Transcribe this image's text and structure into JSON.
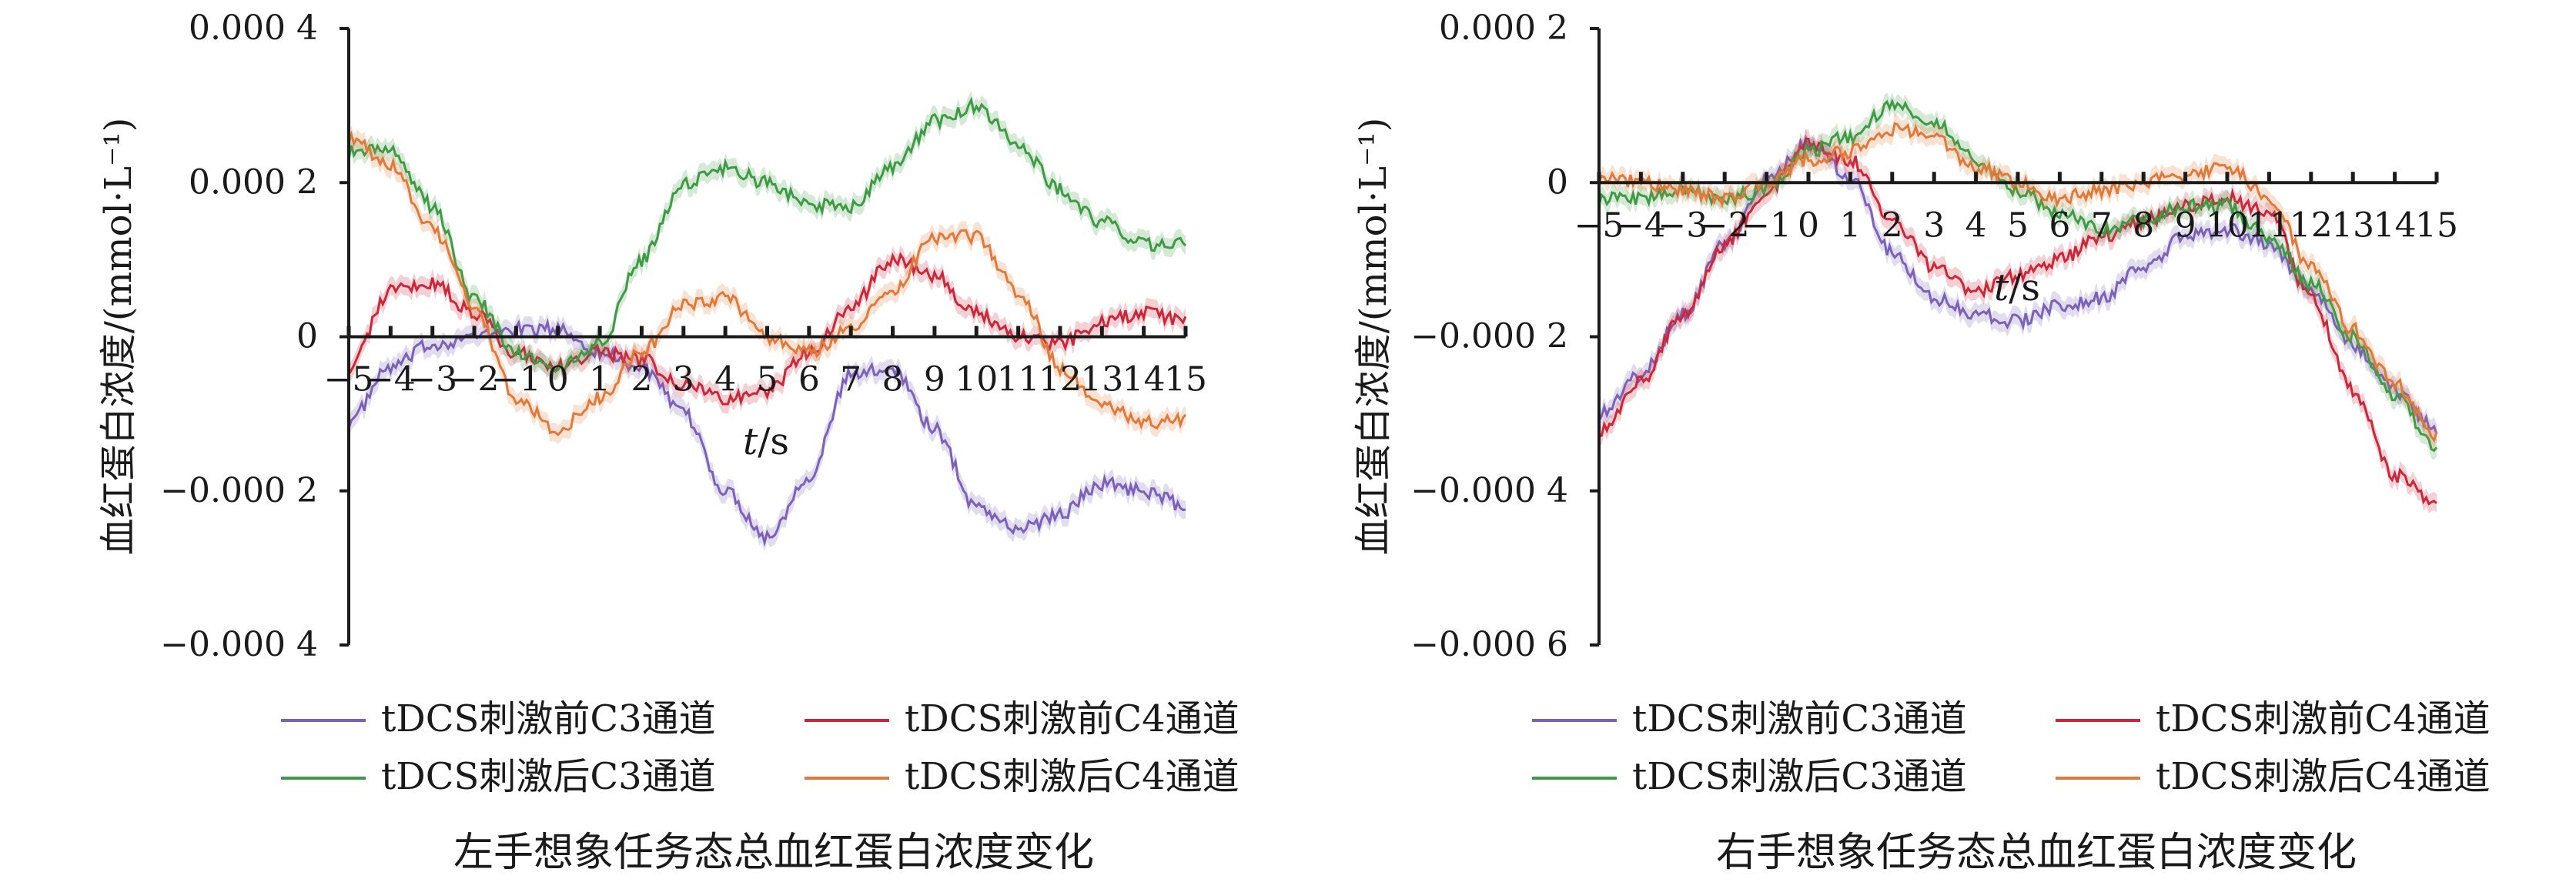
{
  "figure": {
    "captions": [
      "左手想象任务态总血红蛋白浓度变化",
      "右手想象任务态总血红蛋白浓度变化"
    ]
  },
  "chart_data": [
    {
      "type": "line",
      "title": "左手想象任务态总血红蛋白浓度变化",
      "xlabel": "t/s",
      "ylabel": "血红蛋白浓度/(mmol·L⁻¹)",
      "ylim": [
        -0.0004,
        0.0004
      ],
      "yticks": [
        0.0004,
        0.0002,
        0,
        -0.0002,
        -0.0004
      ],
      "ytick_labels": [
        "0.000 4",
        "0.000 2",
        "0",
        "−0.000 2",
        "−0.000 4"
      ],
      "xlim": [
        -5,
        15
      ],
      "xtick_labels": [
        "−5",
        "−4",
        "−3",
        "−2",
        "−1",
        "0",
        "1",
        "2",
        "3",
        "4",
        "5",
        "6",
        "7",
        "8",
        "9",
        "10",
        "11",
        "12",
        "13",
        "14",
        "15"
      ],
      "legend": "bottom",
      "x": [
        -5,
        -4,
        -3,
        -2,
        -1,
        0,
        1,
        2,
        3,
        4,
        5,
        6,
        7,
        8,
        9,
        10,
        11,
        12,
        13,
        14,
        15
      ],
      "series": [
        {
          "name": "tDCS刺激前C3通道",
          "color": "#7b61b8",
          "values": [
            -0.00011,
            -4e-05,
            -1e-05,
            0.0,
            1e-05,
            1e-05,
            -2e-05,
            -4e-05,
            -0.0001,
            -0.0002,
            -0.00026,
            -0.00018,
            -5e-05,
            -4e-05,
            -0.00012,
            -0.00022,
            -0.00025,
            -0.00023,
            -0.00019,
            -0.0002,
            -0.00022
          ]
        },
        {
          "name": "tDCS刺激前C4通道",
          "color": "#c8283a",
          "values": [
            -4e-05,
            6e-05,
            7e-05,
            3e-05,
            -2e-05,
            -4e-05,
            -2e-05,
            -3e-05,
            -6e-05,
            -8e-05,
            -7e-05,
            -2e-05,
            4e-05,
            0.0001,
            8e-05,
            3e-05,
            0.0,
            -1e-05,
            2e-05,
            3e-05,
            2e-05
          ]
        },
        {
          "name": "tDCS刺激后C3通道",
          "color": "#3f9a45",
          "values": [
            0.00024,
            0.00024,
            0.00017,
            5e-05,
            -2e-05,
            -4e-05,
            -1e-05,
            0.0001,
            0.0002,
            0.00022,
            0.0002,
            0.00017,
            0.00017,
            0.00022,
            0.00028,
            0.0003,
            0.00025,
            0.00019,
            0.00015,
            0.00012,
            0.00012
          ]
        },
        {
          "name": "tDCS刺激后C4通道",
          "color": "#e07a3a",
          "values": [
            0.00026,
            0.00022,
            0.00014,
            4e-05,
            -8e-05,
            -0.00012,
            -8e-05,
            -2e-05,
            4e-05,
            5e-05,
            0.0,
            -2e-05,
            1e-05,
            6e-05,
            0.00013,
            0.00013,
            6e-05,
            -4e-05,
            -9e-05,
            -0.00011,
            -0.00011
          ]
        }
      ]
    },
    {
      "type": "line",
      "title": "右手想象任务态总血红蛋白浓度变化",
      "xlabel": "t/s",
      "ylabel": "血红蛋白浓度/(mmol·L⁻¹)",
      "ylim": [
        -0.0006,
        0.0002
      ],
      "yticks": [
        0.0002,
        0,
        -0.0002,
        -0.0004,
        -0.0006
      ],
      "ytick_labels": [
        "0.000 2",
        "0",
        "−0.000 2",
        "−0.000 4",
        "−0.000 6"
      ],
      "xlim": [
        -5,
        15
      ],
      "xtick_labels": [
        "−5",
        "−4",
        "−3",
        "−2",
        "−1",
        "0",
        "1",
        "2",
        "3",
        "4",
        "5",
        "6",
        "7",
        "8",
        "9",
        "10",
        "11",
        "12",
        "13",
        "14",
        "15"
      ],
      "legend": "bottom",
      "x": [
        -5,
        -4,
        -3,
        -2,
        -1,
        0,
        1,
        2,
        3,
        4,
        5,
        6,
        7,
        8,
        9,
        10,
        11,
        12,
        13,
        14,
        15
      ],
      "series": [
        {
          "name": "tDCS刺激前C3通道",
          "color": "#7b61b8",
          "values": [
            -0.0003,
            -0.00025,
            -0.00017,
            -8e-05,
            0.0,
            5e-05,
            1e-05,
            -9e-05,
            -0.00015,
            -0.00017,
            -0.00018,
            -0.00016,
            -0.00015,
            -0.00011,
            -7e-05,
            -6e-05,
            -8e-05,
            -0.00014,
            -0.00021,
            -0.00027,
            -0.00032
          ]
        },
        {
          "name": "tDCS刺激前C4通道",
          "color": "#c8283a",
          "values": [
            -0.00032,
            -0.00026,
            -0.00017,
            -8e-05,
            -1e-05,
            5e-05,
            3e-05,
            -5e-05,
            -0.00011,
            -0.00014,
            -0.00012,
            -0.0001,
            -7e-05,
            -5e-05,
            -3e-05,
            -2e-05,
            -4e-05,
            -0.00015,
            -0.00027,
            -0.00038,
            -0.00042
          ]
        },
        {
          "name": "tDCS刺激后C3通道",
          "color": "#3f9a45",
          "values": [
            -2e-05,
            -2e-05,
            -1e-05,
            -2e-05,
            -1e-05,
            4e-05,
            6e-05,
            0.0001,
            8e-05,
            3e-05,
            -1e-05,
            -4e-05,
            -6e-05,
            -5e-05,
            -3e-05,
            -3e-05,
            -7e-05,
            -0.00013,
            -0.0002,
            -0.00028,
            -0.00034
          ]
        },
        {
          "name": "tDCS刺激后C4通道",
          "color": "#e07a3a",
          "values": [
            1e-05,
            0.0,
            -1e-05,
            -2e-05,
            0.0,
            3e-05,
            4e-05,
            7e-05,
            6e-05,
            2e-05,
            0.0,
            -2e-05,
            -1e-05,
            0.0,
            1e-05,
            2e-05,
            -2e-05,
            -0.00011,
            -0.00019,
            -0.00026,
            -0.00033
          ]
        }
      ]
    }
  ]
}
